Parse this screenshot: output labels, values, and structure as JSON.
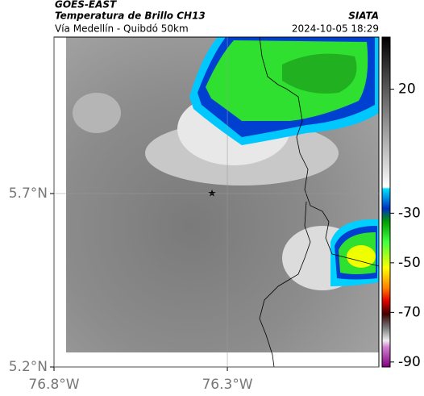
{
  "header": {
    "source": "GOES-EAST",
    "product": "Temperatura de Brillo CH13",
    "region": "Vía Medellín - Quibdó 50km",
    "agency": "SIATA",
    "datetime": "2024-10-05 18:29"
  },
  "map": {
    "xlim": [
      -76.8,
      -75.863
    ],
    "ylim": [
      5.2,
      6.151
    ],
    "xticks": [
      {
        "value": -76.8,
        "label": "76.8°W"
      },
      {
        "value": -76.3,
        "label": "76.3°W"
      }
    ],
    "yticks": [
      {
        "value": 5.2,
        "label": "5.2°N"
      },
      {
        "value": 5.7,
        "label": "5.7°N"
      }
    ],
    "grid": true
  },
  "colorbar": {
    "lim": [
      41,
      -92
    ],
    "ticks": [
      20,
      -30,
      -50,
      -70,
      -90
    ]
  }
}
